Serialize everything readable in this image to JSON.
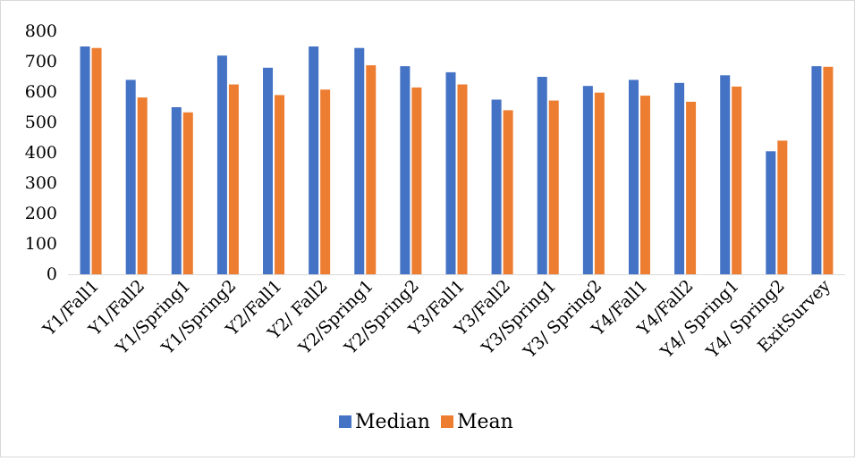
{
  "chart_data": {
    "type": "bar",
    "title": "",
    "xlabel": "",
    "ylabel": "",
    "ylim": [
      0,
      800
    ],
    "yticks": [
      "0",
      "100",
      "200",
      "300",
      "400",
      "500",
      "600",
      "700",
      "800"
    ],
    "grid": false,
    "legend_position": "bottom",
    "categories": [
      "Y1/Fall1",
      "Y1/Fall2",
      "Y1/Spring1",
      "Y1/Spring2",
      "Y2/Fall1",
      "Y2/ Fall2",
      "Y2/Spring1",
      "Y2/Spring2",
      "Y3/Fall1",
      "Y3/Fall2",
      "Y3/Spring1",
      "Y3/ Spring2",
      "Y4/Fall1",
      "Y4/Fall2",
      "Y4/ Spring1",
      "Y4/ Spring2",
      "ExitSurvey"
    ],
    "series": [
      {
        "name": "Median",
        "color": "#4472C4",
        "values": [
          750,
          640,
          550,
          720,
          680,
          750,
          745,
          685,
          665,
          575,
          650,
          620,
          640,
          630,
          655,
          405,
          685
        ]
      },
      {
        "name": "Mean",
        "color": "#ED7D31",
        "values": [
          745,
          582,
          533,
          625,
          590,
          608,
          688,
          615,
          625,
          540,
          572,
          598,
          588,
          568,
          618,
          440,
          683
        ]
      }
    ]
  }
}
